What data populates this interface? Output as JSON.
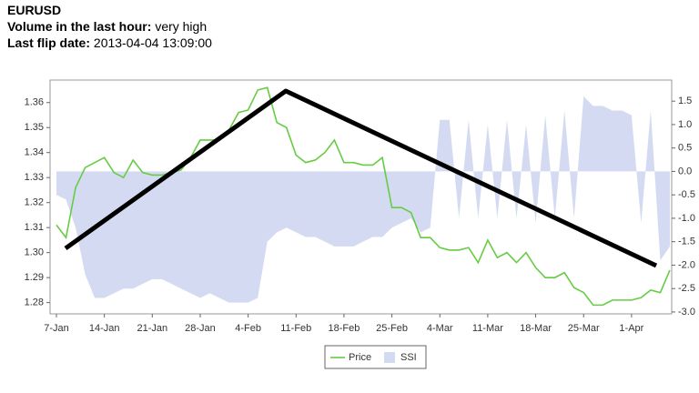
{
  "header": {
    "symbol": "EURUSD",
    "volume_label": "Volume in the last hour:",
    "volume_value": "very high",
    "flip_label": "Last flip date:",
    "flip_value": "2013-04-04 13:09:00"
  },
  "chart_data": {
    "type": "line",
    "legend": "bottom",
    "categories": [
      "7-Jan",
      null,
      null,
      null,
      null,
      "14-Jan",
      null,
      null,
      null,
      null,
      "21-Jan",
      null,
      null,
      null,
      null,
      "28-Jan",
      null,
      null,
      null,
      null,
      "4-Feb",
      null,
      null,
      null,
      null,
      "11-Feb",
      null,
      null,
      null,
      null,
      "18-Feb",
      null,
      null,
      null,
      null,
      "25-Feb",
      null,
      null,
      null,
      null,
      "4-Mar",
      null,
      null,
      null,
      null,
      "11-Mar",
      null,
      null,
      null,
      null,
      "18-Mar",
      null,
      null,
      null,
      null,
      "25-Mar",
      null,
      null,
      null,
      null,
      "1-Apr",
      null,
      null,
      null,
      null
    ],
    "series": [
      {
        "name": "Price",
        "color": "#66cc44",
        "type": "line",
        "axis": "y",
        "values": [
          1.311,
          1.306,
          1.326,
          1.334,
          1.336,
          1.338,
          1.332,
          1.33,
          1.337,
          1.332,
          1.331,
          1.331,
          1.332,
          1.333,
          1.338,
          1.345,
          1.345,
          1.345,
          1.349,
          1.356,
          1.357,
          1.365,
          1.366,
          1.352,
          1.35,
          1.339,
          1.336,
          1.337,
          1.34,
          1.345,
          1.336,
          1.336,
          1.335,
          1.335,
          1.338,
          1.318,
          1.318,
          1.316,
          1.306,
          1.306,
          1.302,
          1.301,
          1.301,
          1.302,
          1.296,
          1.305,
          1.298,
          1.3,
          1.296,
          1.3,
          1.294,
          1.29,
          1.29,
          1.292,
          1.286,
          1.284,
          1.279,
          1.279,
          1.281,
          1.281,
          1.281,
          1.282,
          1.285,
          1.284,
          1.293
        ]
      },
      {
        "name": "SSI",
        "color": "#d4daf2",
        "type": "area",
        "axis": "y2",
        "values": [
          -0.5,
          -0.6,
          -1.2,
          -2.2,
          -2.7,
          -2.7,
          -2.6,
          -2.5,
          -2.5,
          -2.4,
          -2.3,
          -2.3,
          -2.4,
          -2.5,
          -2.6,
          -2.7,
          -2.6,
          -2.7,
          -2.8,
          -2.8,
          -2.8,
          -2.7,
          -1.5,
          -1.3,
          -1.2,
          -1.3,
          -1.4,
          -1.4,
          -1.5,
          -1.6,
          -1.6,
          -1.6,
          -1.5,
          -1.4,
          -1.4,
          -1.2,
          -1.1,
          -1.0,
          -1.3,
          -1.2,
          1.1,
          1.1,
          -1.0,
          1.1,
          -1.0,
          1.0,
          -1.0,
          1.1,
          -1.0,
          1.0,
          -1.1,
          1.2,
          -1.0,
          1.3,
          -1.0,
          1.6,
          1.4,
          1.4,
          1.3,
          1.3,
          1.2,
          -1.1,
          1.3,
          -1.9,
          -1.6
        ]
      }
    ],
    "ylim": [
      1.2755,
      1.369
    ],
    "yticks": [
      1.28,
      1.29,
      {
        "value": 1.3,
        "label": "1.30"
      },
      1.31,
      1.32,
      1.33,
      1.34,
      1.35,
      1.36
    ],
    "y2lim": [
      -3.04,
      1.95
    ],
    "y2ticks": [
      {
        "value": -3,
        "label": "-3.0"
      },
      -2.5,
      {
        "value": -2,
        "label": "-2.0"
      },
      -1.5,
      {
        "value": -1,
        "label": "-1.0"
      },
      -0.5,
      {
        "value": 0,
        "label": "0.0"
      },
      0.5,
      {
        "value": 1,
        "label": "1.0"
      },
      1.5
    ]
  }
}
